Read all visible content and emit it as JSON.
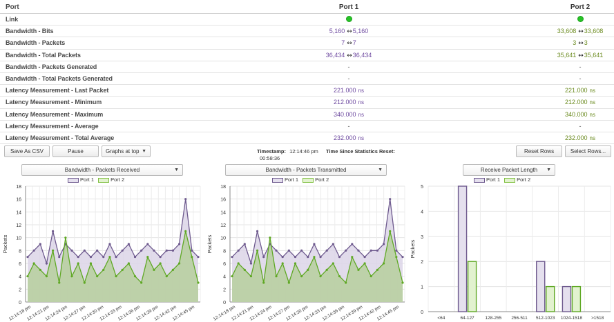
{
  "table": {
    "header": {
      "label": "Port",
      "port1": "Port 1",
      "port2": "Port 2"
    },
    "rows": [
      {
        "label": "Link",
        "type": "dot"
      },
      {
        "label": "Bandwidth - Bits",
        "type": "pair",
        "p1": [
          "5,160",
          "5,160"
        ],
        "p2": [
          "33,608",
          "33,608"
        ]
      },
      {
        "label": "Bandwidth - Packets",
        "type": "pair",
        "p1": [
          "7",
          "7"
        ],
        "p2": [
          "3",
          "3"
        ]
      },
      {
        "label": "Bandwidth - Total Packets",
        "type": "pair",
        "p1": [
          "36,434",
          "36,434"
        ],
        "p2": [
          "35,641",
          "35,641"
        ]
      },
      {
        "label": "Bandwidth - Packets Generated",
        "type": "dash",
        "p1": "-",
        "p2": "-"
      },
      {
        "label": "Bandwidth - Total Packets Generated",
        "type": "dash",
        "p1": "-",
        "p2": "-"
      },
      {
        "label": "Latency Measurement - Last Packet",
        "type": "ns",
        "p1": "221.000",
        "p2": "221.000"
      },
      {
        "label": "Latency Measurement - Minimum",
        "type": "ns",
        "p1": "212.000",
        "p2": "212.000"
      },
      {
        "label": "Latency Measurement - Maximum",
        "type": "ns",
        "p1": "340.000",
        "p2": "340.000"
      },
      {
        "label": "Latency Measurement - Average",
        "type": "dash",
        "p1": "-",
        "p2": "-"
      },
      {
        "label": "Latency Measurement - Total Average",
        "type": "ns",
        "p1": "232.000",
        "p2": "232.000"
      }
    ],
    "unit": "ns"
  },
  "toolbar": {
    "save_csv": "Save As CSV",
    "pause": "Pause",
    "graphs_position": "Graphs at top",
    "timestamp_label": "Timestamp:",
    "timestamp_value": "12:14:46 pm",
    "elapsed": "00:58:36",
    "since_reset_label": "Time Since Statistics Reset:",
    "reset_rows": "Reset Rows",
    "select_rows": "Select Rows..."
  },
  "colors": {
    "port1_line": "#6e5a8e",
    "port1_fill": "#dcd5e8",
    "port2_line": "#5fa824",
    "port2_fill": "#b9cfa2",
    "port1_text": "#6e4aa0",
    "port2_text": "#6a8a1e",
    "link_up": "#27c327"
  },
  "legend": {
    "port1": "Port 1",
    "port2": "Port 2"
  },
  "chart_data": [
    {
      "type": "area",
      "selector": "Bandwidth - Packets Received",
      "ylabel": "Packets",
      "ylim": [
        0,
        18
      ],
      "yticks": [
        0,
        2,
        4,
        6,
        8,
        10,
        12,
        14,
        16,
        18
      ],
      "xtick_labels": [
        "12:14:18 pm",
        "12:14:21 pm",
        "12:14:24 pm",
        "12:14:27 pm",
        "12:14:30 pm",
        "12:14:33 pm",
        "12:14:36 pm",
        "12:14:39 pm",
        "12:14:42 pm",
        "12:14:45 pm"
      ],
      "series": [
        {
          "name": "Port 1",
          "values": [
            7,
            8,
            9,
            6,
            11,
            7,
            9,
            8,
            7,
            8,
            7,
            8,
            7,
            9,
            7,
            8,
            9,
            7,
            8,
            9,
            8,
            7,
            8,
            8,
            9,
            16,
            8,
            7
          ]
        },
        {
          "name": "Port 2",
          "values": [
            4,
            6,
            5,
            4,
            8,
            3,
            10,
            4,
            6,
            3,
            6,
            4,
            5,
            7,
            4,
            5,
            6,
            4,
            3,
            7,
            5,
            6,
            4,
            5,
            6,
            11,
            7,
            3
          ]
        }
      ]
    },
    {
      "type": "area",
      "selector": "Bandwidth - Packets Transmitted",
      "ylabel": "Packets",
      "ylim": [
        0,
        18
      ],
      "yticks": [
        0,
        2,
        4,
        6,
        8,
        10,
        12,
        14,
        16,
        18
      ],
      "xtick_labels": [
        "12:14:18 pm",
        "12:14:21 pm",
        "12:14:24 pm",
        "12:14:27 pm",
        "12:14:30 pm",
        "12:14:33 pm",
        "12:14:36 pm",
        "12:14:39 pm",
        "12:14:42 pm",
        "12:14:45 pm"
      ],
      "series": [
        {
          "name": "Port 1",
          "values": [
            7,
            8,
            9,
            6,
            11,
            7,
            9,
            8,
            7,
            8,
            7,
            8,
            7,
            9,
            7,
            8,
            9,
            7,
            8,
            9,
            8,
            7,
            8,
            8,
            9,
            16,
            8,
            7
          ]
        },
        {
          "name": "Port 2",
          "values": [
            4,
            6,
            5,
            4,
            8,
            3,
            10,
            4,
            6,
            3,
            6,
            4,
            5,
            7,
            4,
            5,
            6,
            4,
            3,
            7,
            5,
            6,
            4,
            5,
            6,
            11,
            7,
            3
          ]
        }
      ]
    },
    {
      "type": "bar",
      "selector": "Receive Packet Length",
      "ylabel": "Packets",
      "ylim": [
        0,
        5
      ],
      "yticks": [
        0,
        1,
        2,
        3,
        4,
        5
      ],
      "categories": [
        "<64",
        "64-127",
        "128-255",
        "256-511",
        "512-1023",
        "1024-1518",
        ">1518"
      ],
      "series": [
        {
          "name": "Port 1",
          "values": [
            0,
            5,
            0,
            0,
            2,
            1,
            0
          ]
        },
        {
          "name": "Port 2",
          "values": [
            0,
            2,
            0,
            0,
            1,
            1,
            0
          ]
        }
      ]
    }
  ]
}
